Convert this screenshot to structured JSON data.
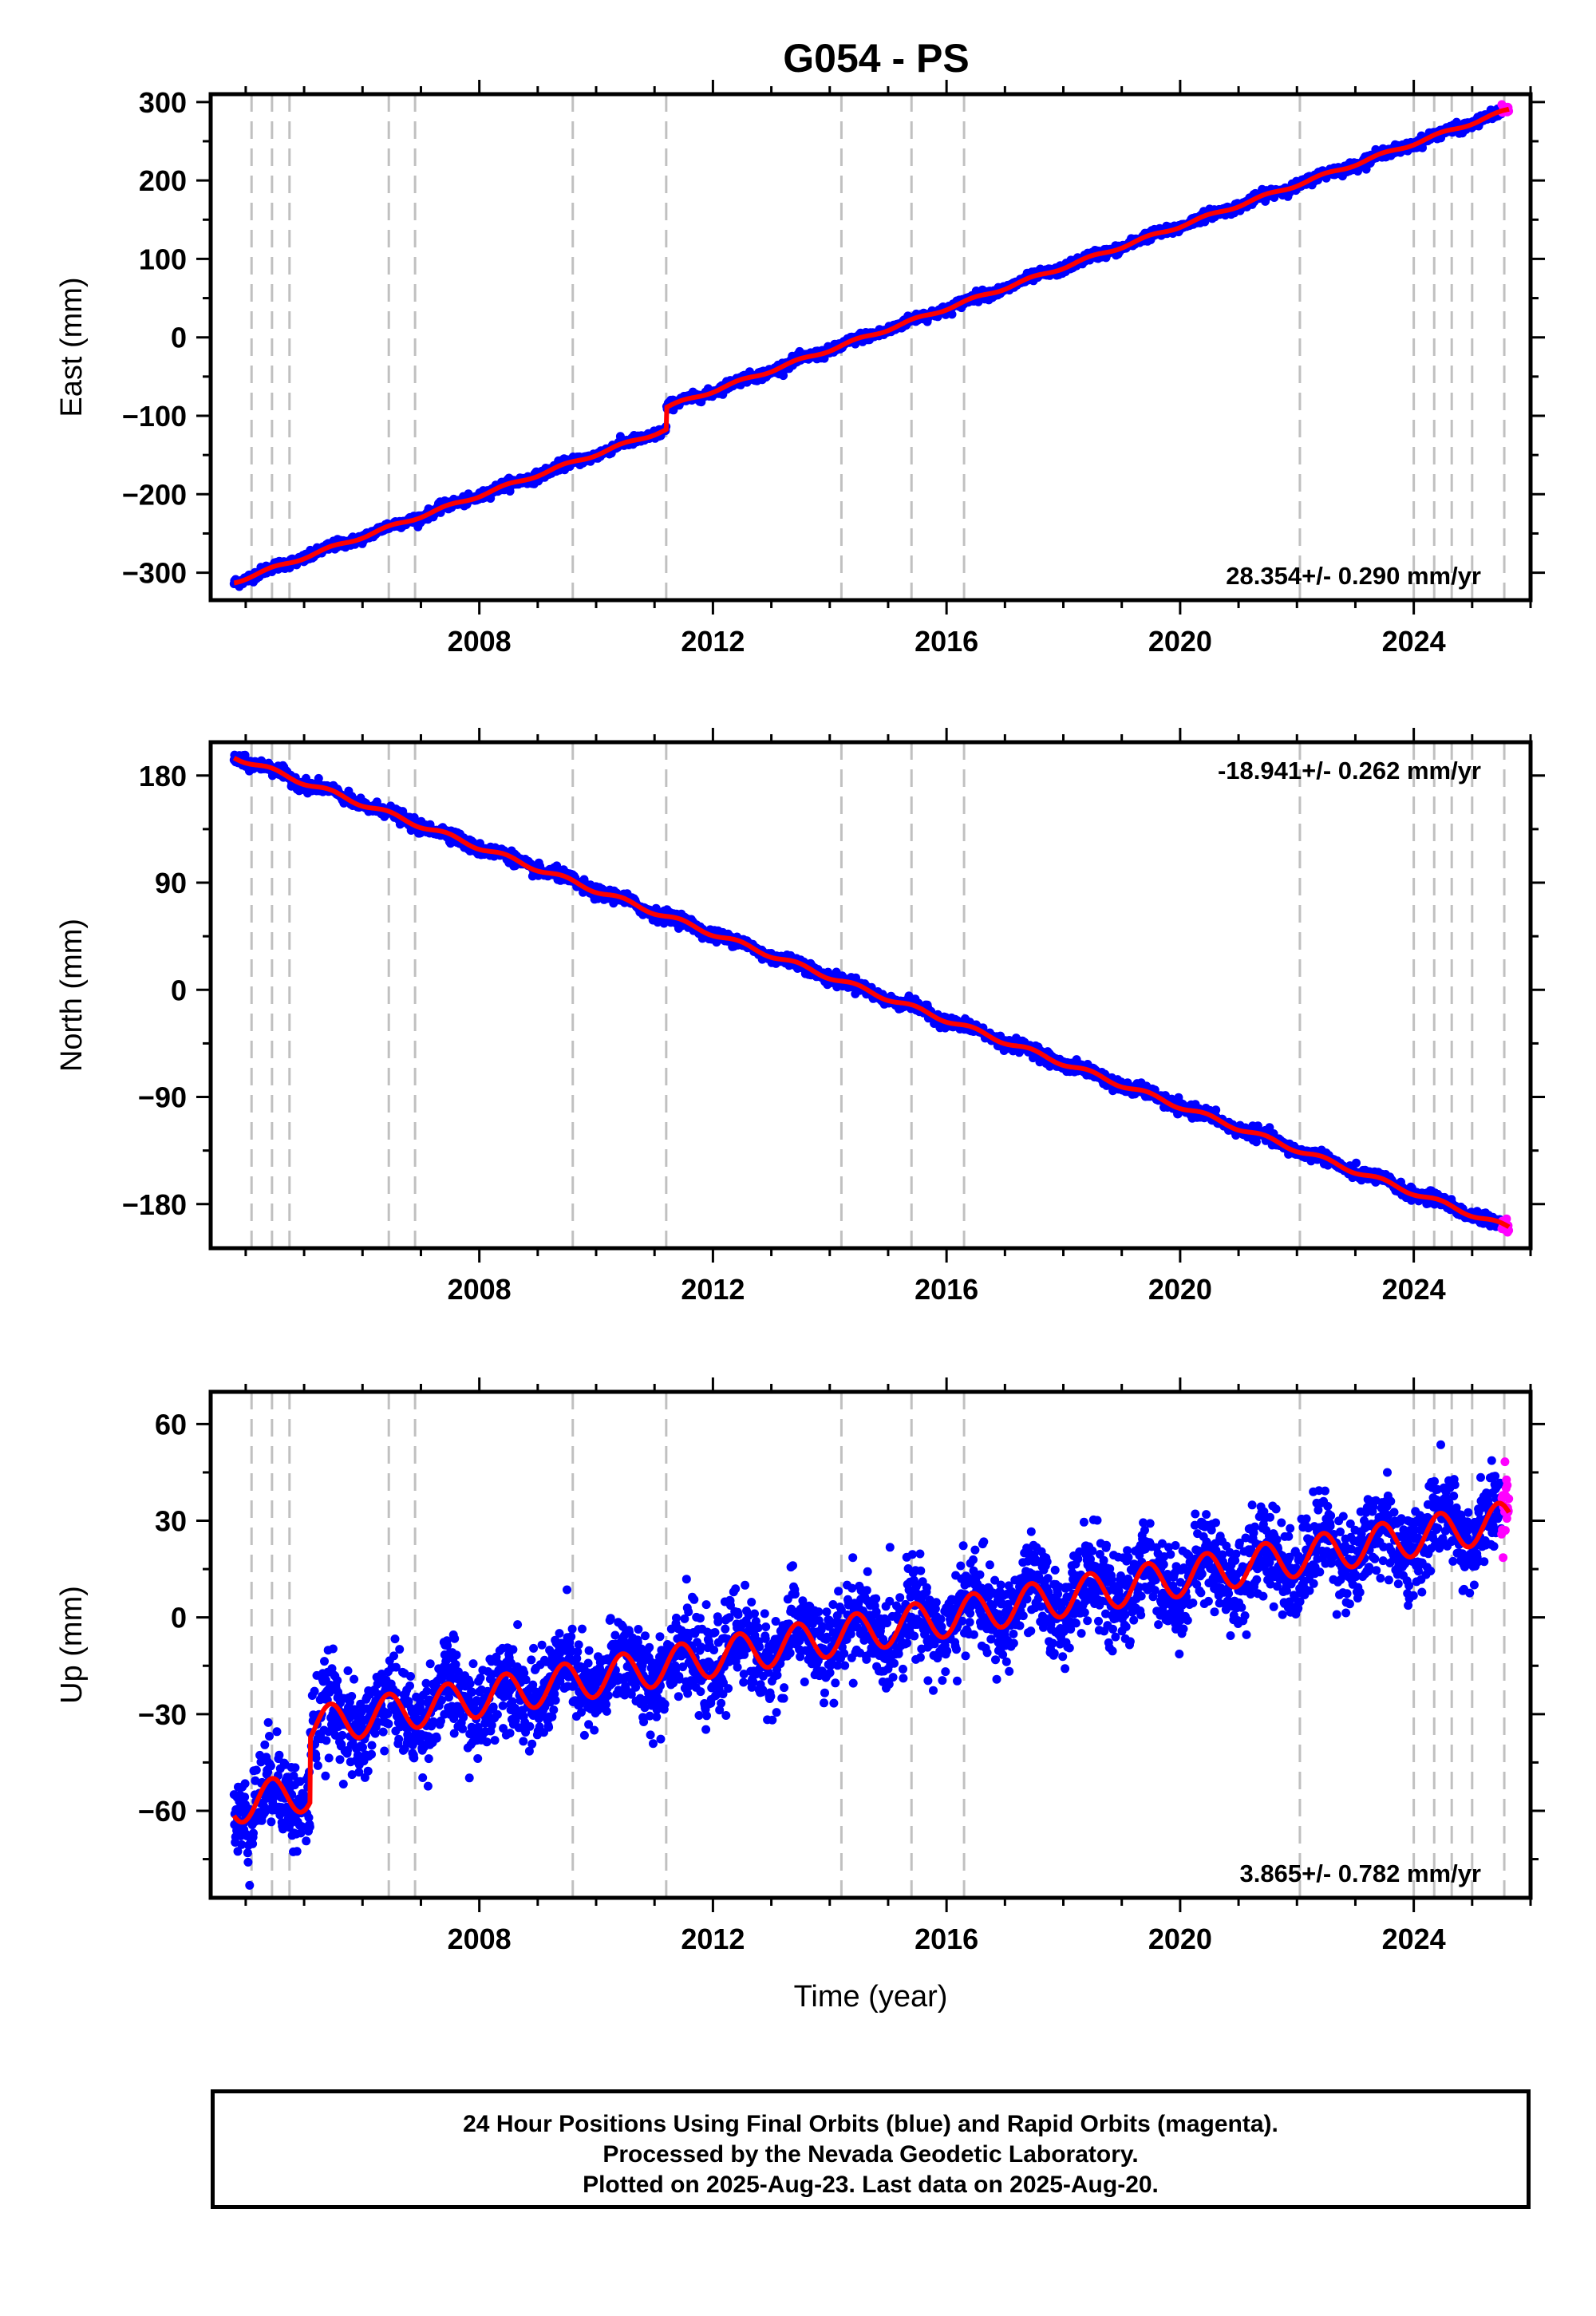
{
  "title": "G054 - PS",
  "colors": {
    "final": "#0000ff",
    "rapid": "#ff00ff",
    "model": "#ff0000",
    "steps": "#c0c0c0"
  },
  "footer": {
    "line1": "24 Hour Positions Using Final Orbits (blue) and Rapid Orbits (magenta).",
    "line2": "Processed by the Nevada Geodetic Laboratory.",
    "line3": "Plotted on 2025-Aug-23. Last data on 2025-Aug-20."
  },
  "chart_data": [
    {
      "type": "scatter",
      "component": "east",
      "ylabel": "East (mm)",
      "xlabel": "",
      "xlim": [
        2003.4,
        2026.0
      ],
      "ylim": [
        -335,
        310
      ],
      "yticks": [
        -300,
        -200,
        -100,
        0,
        100,
        200,
        300
      ],
      "xticks": [
        2008,
        2012,
        2016,
        2020,
        2024
      ],
      "rate_label": "28.354+/- 0.290 mm/yr",
      "rate_position": "bottom-right",
      "x_range_data": [
        2003.8,
        2025.63
      ],
      "y_start": -312,
      "y_end": 290,
      "offsets": [
        {
          "year": 2011.2,
          "step": 28
        }
      ],
      "seasonal_amplitude": 2,
      "scatter_mm": 3
    },
    {
      "type": "scatter",
      "component": "north",
      "ylabel": "North (mm)",
      "xlabel": "",
      "xlim": [
        2003.4,
        2026.0
      ],
      "ylim": [
        -217,
        208
      ],
      "yticks": [
        -180,
        -90,
        0,
        90,
        180
      ],
      "xticks": [
        2008,
        2012,
        2016,
        2020,
        2024
      ],
      "rate_label": "-18.941+/- 0.262 mm/yr",
      "rate_position": "top-right",
      "x_range_data": [
        2003.8,
        2025.63
      ],
      "y_start": 196,
      "y_end": -200,
      "offsets": [],
      "seasonal_amplitude": 2,
      "scatter_mm": 2.5
    },
    {
      "type": "scatter",
      "component": "up",
      "ylabel": "Up (mm)",
      "xlabel": "Time (year)",
      "xlim": [
        2003.4,
        2026.0
      ],
      "ylim": [
        -87,
        70
      ],
      "yticks": [
        -60,
        -30,
        0,
        30,
        60
      ],
      "xticks": [
        2008,
        2012,
        2016,
        2020,
        2024
      ],
      "rate_label": "3.865+/- 0.782 mm/yr",
      "rate_position": "bottom-right",
      "x_range_data": [
        2003.8,
        2025.63
      ],
      "y_start": -58,
      "y_end": 30,
      "offsets": [
        {
          "year": 2005.1,
          "step": 20
        }
      ],
      "seasonal_amplitude": 6,
      "scatter_mm": 7
    }
  ],
  "step_lines_years": [
    2004.1,
    2004.45,
    2004.75,
    2006.45,
    2006.9,
    2009.6,
    2011.2,
    2014.2,
    2015.4,
    2016.3,
    2022.05,
    2024.0,
    2024.35,
    2024.65,
    2025.0,
    2025.55
  ]
}
